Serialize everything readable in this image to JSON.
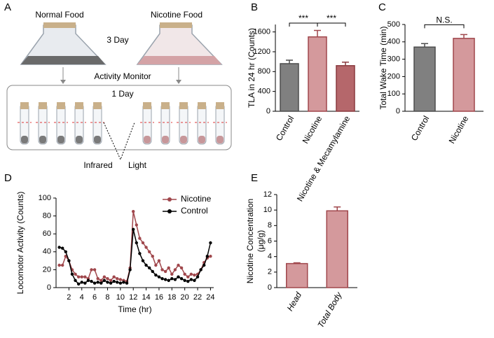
{
  "panel_labels": [
    "A",
    "B",
    "C",
    "D",
    "E"
  ],
  "diagram": {
    "normal_food": "Normal Food",
    "nicotine_food": "Nicotine Food",
    "duration_1": "3 Day",
    "monitor": "Activity Monitor",
    "duration_2": "1 Day",
    "infrared": "Infrared",
    "light": "Light"
  },
  "chart_data": [
    {
      "type": "bar",
      "ylabel": "TLA in 24 hr (Counts)",
      "categories": [
        "Control",
        "Nicotine",
        "Nicotine & Mecamylamine"
      ],
      "values": [
        960,
        1500,
        920
      ],
      "errors": [
        70,
        130,
        70
      ],
      "colors": [
        "#808080",
        "#d4999c",
        "#b5676b"
      ],
      "ylim": [
        0,
        1750
      ],
      "yticks": [
        0,
        400,
        800,
        1200,
        1600
      ],
      "annotations": [
        "***",
        "***"
      ]
    },
    {
      "type": "bar",
      "ylabel": "Total Wake Time (min)",
      "categories": [
        "Control",
        "Nicotine"
      ],
      "values": [
        370,
        420
      ],
      "errors": [
        20,
        22
      ],
      "colors": [
        "#808080",
        "#d4999c"
      ],
      "ylim": [
        0,
        500
      ],
      "yticks": [
        0,
        100,
        200,
        300,
        400,
        500
      ],
      "annotations": [
        "N.S."
      ]
    },
    {
      "type": "line",
      "xlabel": "Time (hr)",
      "ylabel": "Locomotor Activity (Counts)",
      "x": [
        0.5,
        1,
        1.5,
        2,
        2.5,
        3,
        3.5,
        4,
        4.5,
        5,
        5.5,
        6,
        6.5,
        7,
        7.5,
        8,
        8.5,
        9,
        9.5,
        10,
        10.5,
        11,
        11.5,
        12,
        12.5,
        13,
        13.5,
        14,
        14.5,
        15,
        15.5,
        16,
        16.5,
        17,
        17.5,
        18,
        18.5,
        19,
        19.5,
        20,
        20.5,
        21,
        21.5,
        22,
        22.5,
        23,
        23.5,
        24
      ],
      "series": [
        {
          "name": "Nicotine",
          "color": "#a0474c",
          "values": [
            25,
            25,
            35,
            30,
            20,
            15,
            12,
            12,
            12,
            10,
            20,
            20,
            10,
            8,
            12,
            10,
            8,
            12,
            10,
            9,
            8,
            7,
            22,
            85,
            70,
            55,
            50,
            45,
            40,
            35,
            25,
            30,
            20,
            18,
            22,
            15,
            20,
            25,
            22,
            15,
            12,
            15,
            14,
            15,
            20,
            28,
            33,
            35
          ]
        },
        {
          "name": "Control",
          "color": "#000000",
          "values": [
            45,
            44,
            40,
            30,
            15,
            8,
            4,
            6,
            5,
            8,
            7,
            5,
            6,
            5,
            8,
            6,
            5,
            7,
            6,
            5,
            6,
            5,
            20,
            65,
            50,
            38,
            30,
            25,
            22,
            18,
            14,
            12,
            10,
            9,
            8,
            10,
            9,
            12,
            10,
            8,
            7,
            9,
            8,
            12,
            20,
            25,
            35,
            50
          ]
        }
      ],
      "xlim": [
        0,
        24.5
      ],
      "xticks": [
        2,
        4,
        6,
        8,
        10,
        12,
        14,
        16,
        18,
        20,
        22,
        24
      ],
      "ylim": [
        0,
        100
      ],
      "yticks": [
        0,
        20,
        40,
        60,
        80,
        100
      ]
    },
    {
      "type": "bar",
      "ylabel_lines": [
        "Nicotine Concentration",
        "(μg/g)"
      ],
      "categories": [
        "Head",
        "Total Body"
      ],
      "values": [
        3.1,
        9.9
      ],
      "errors": [
        0.1,
        0.5
      ],
      "colors": [
        "#d4999c",
        "#d4999c"
      ],
      "ylim": [
        0,
        12
      ],
      "yticks": [
        0,
        2,
        4,
        6,
        8,
        10,
        12
      ]
    }
  ]
}
